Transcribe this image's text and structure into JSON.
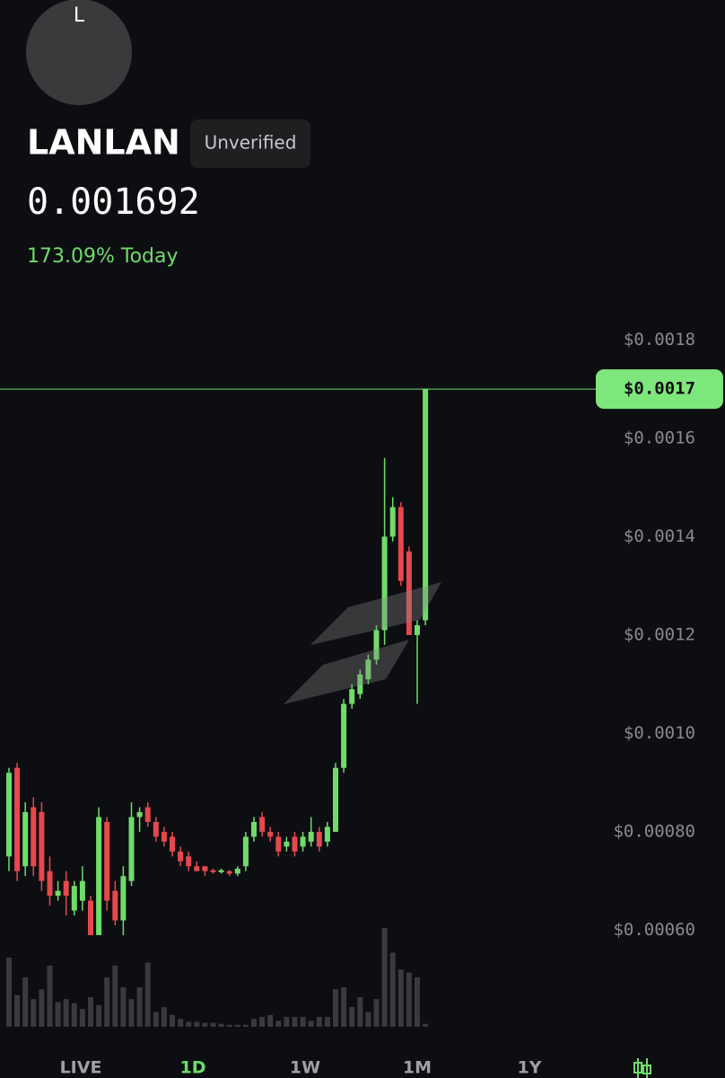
{
  "header": {
    "avatar_letter": "L",
    "name": "LANLAN",
    "badge": "Unverified",
    "price": "0.001692",
    "change": "173.09% Today"
  },
  "chart_data": {
    "type": "candlestick",
    "ylim": [
      0.0004,
      0.00187
    ],
    "yticks": [
      {
        "value": 0.0006,
        "label": "$0.00060"
      },
      {
        "value": 0.0008,
        "label": "$0.00080"
      },
      {
        "value": 0.001,
        "label": "$0.0010"
      },
      {
        "value": 0.0012,
        "label": "$0.0012"
      },
      {
        "value": 0.0014,
        "label": "$0.0014"
      },
      {
        "value": 0.0016,
        "label": "$0.0016"
      },
      {
        "value": 0.0018,
        "label": "$0.0018"
      }
    ],
    "last_price": {
      "value": 0.0017,
      "label": "$0.0017"
    },
    "up_color": "#6fdc6a",
    "down_color": "#e5484d",
    "volume_color": "#3a3a3c",
    "volume_lim": [
      0,
      100
    ],
    "candles": [
      [
        0.00075,
        0.00093,
        0.00072,
        0.00092
      ],
      [
        0.00093,
        0.00094,
        0.0007,
        0.00072
      ],
      [
        0.00073,
        0.00086,
        0.00071,
        0.00084
      ],
      [
        0.00085,
        0.00087,
        0.00071,
        0.00073
      ],
      [
        0.00084,
        0.00086,
        0.00068,
        0.0007
      ],
      [
        0.00072,
        0.00075,
        0.00065,
        0.00067
      ],
      [
        0.00067,
        0.0007,
        0.00066,
        0.00068
      ],
      [
        0.0007,
        0.00072,
        0.00063,
        0.00067
      ],
      [
        0.00064,
        0.0007,
        0.00063,
        0.00069
      ],
      [
        0.00066,
        0.00073,
        0.00064,
        0.0007
      ],
      [
        0.00066,
        0.00067,
        0.00059,
        0.00059
      ],
      [
        0.00059,
        0.00085,
        0.00059,
        0.00083
      ],
      [
        0.00082,
        0.00083,
        0.00064,
        0.00066
      ],
      [
        0.00068,
        0.0007,
        0.00061,
        0.00062
      ],
      [
        0.00062,
        0.00073,
        0.00059,
        0.00071
      ],
      [
        0.0007,
        0.00086,
        0.00069,
        0.00083
      ],
      [
        0.00083,
        0.00085,
        0.0008,
        0.00084
      ],
      [
        0.00085,
        0.00086,
        0.00081,
        0.00082
      ],
      [
        0.00082,
        0.00083,
        0.00078,
        0.00079
      ],
      [
        0.0008,
        0.00081,
        0.00077,
        0.00078
      ],
      [
        0.00079,
        0.0008,
        0.00075,
        0.00076
      ],
      [
        0.00076,
        0.00077,
        0.00073,
        0.00074
      ],
      [
        0.00075,
        0.00076,
        0.00072,
        0.00073
      ],
      [
        0.00073,
        0.00074,
        0.00072,
        0.00072
      ],
      [
        0.00073,
        0.00073,
        0.00071,
        0.00072
      ],
      [
        0.000722,
        0.000725,
        0.000715,
        0.000718
      ],
      [
        0.000718,
        0.000725,
        0.000715,
        0.000722
      ],
      [
        0.00072,
        0.000722,
        0.00071,
        0.000715
      ],
      [
        0.000715,
        0.00073,
        0.00071,
        0.000725
      ],
      [
        0.00073,
        0.0008,
        0.00072,
        0.00079
      ],
      [
        0.00079,
        0.00083,
        0.00078,
        0.00082
      ],
      [
        0.00083,
        0.00084,
        0.00079,
        0.0008
      ],
      [
        0.0008,
        0.00081,
        0.00078,
        0.00079
      ],
      [
        0.00079,
        0.0008,
        0.00075,
        0.00076
      ],
      [
        0.00077,
        0.00079,
        0.00076,
        0.00078
      ],
      [
        0.00079,
        0.0008,
        0.00075,
        0.00076
      ],
      [
        0.00077,
        0.0008,
        0.00076,
        0.00079
      ],
      [
        0.00078,
        0.00083,
        0.00077,
        0.0008
      ],
      [
        0.0008,
        0.00081,
        0.00076,
        0.00077
      ],
      [
        0.00078,
        0.00082,
        0.00077,
        0.00081
      ],
      [
        0.0008,
        0.00094,
        0.0008,
        0.00093
      ],
      [
        0.00093,
        0.00107,
        0.00092,
        0.00106
      ],
      [
        0.00106,
        0.0011,
        0.00105,
        0.00109
      ],
      [
        0.00108,
        0.00113,
        0.00107,
        0.00112
      ],
      [
        0.00111,
        0.00116,
        0.0011,
        0.00115
      ],
      [
        0.00115,
        0.00122,
        0.00114,
        0.00121
      ],
      [
        0.00121,
        0.00156,
        0.00118,
        0.0014
      ],
      [
        0.0014,
        0.00148,
        0.00139,
        0.00146
      ],
      [
        0.00146,
        0.00147,
        0.0013,
        0.00131
      ],
      [
        0.00137,
        0.00138,
        0.0012,
        0.0012
      ],
      [
        0.0012,
        0.00123,
        0.00106,
        0.00122
      ],
      [
        0.00123,
        0.0017,
        0.00122,
        0.0017
      ]
    ],
    "volumes": [
      70,
      32,
      50,
      28,
      38,
      62,
      25,
      28,
      24,
      18,
      30,
      22,
      50,
      62,
      40,
      28,
      40,
      65,
      15,
      20,
      12,
      8,
      5,
      5,
      4,
      4,
      3,
      2,
      2,
      2,
      8,
      10,
      12,
      6,
      10,
      10,
      10,
      6,
      10,
      10,
      38,
      40,
      20,
      30,
      15,
      28,
      100,
      75,
      58,
      55,
      50,
      3
    ]
  },
  "tabs": {
    "items": [
      "LIVE",
      "1D",
      "1W",
      "1M",
      "1Y"
    ],
    "active": "1D"
  }
}
